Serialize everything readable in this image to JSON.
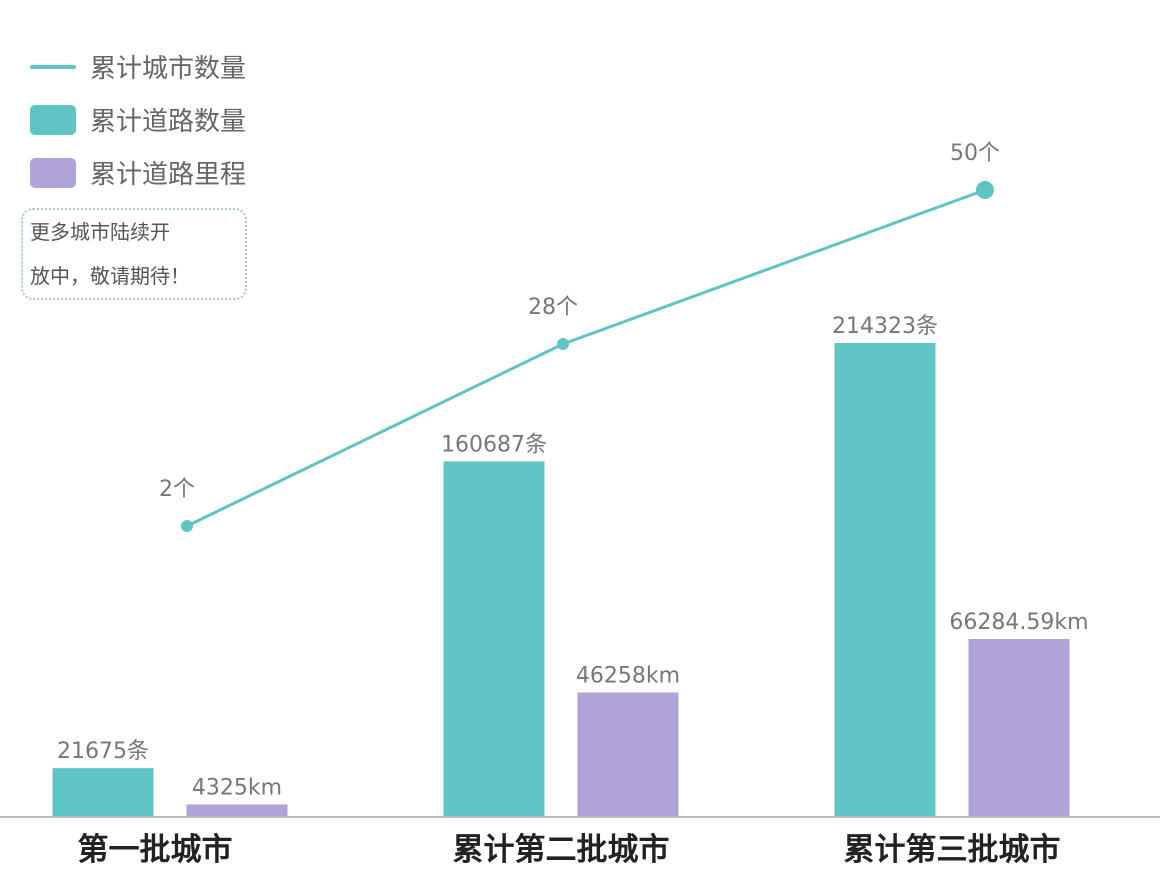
{
  "chart_data": {
    "type": "bar",
    "categories": [
      "第一批城市",
      "累计第二批城市",
      "累计第三批城市"
    ],
    "series": [
      {
        "name": "累计城市数量",
        "kind": "line",
        "color": "#5fc4c4",
        "values": [
          2,
          28,
          50
        ],
        "labels": [
          "2个",
          "28个",
          "50个"
        ]
      },
      {
        "name": "累计道路数量",
        "kind": "bar",
        "color": "#5fc4c4",
        "values": [
          21675,
          160687,
          214323
        ],
        "labels": [
          "21675条",
          "160687条",
          "214323条"
        ]
      },
      {
        "name": "累计道路里程",
        "kind": "bar",
        "color": "#b0a3d8",
        "values": [
          4325,
          46258,
          66284.59
        ],
        "labels": [
          "4325km",
          "46258km",
          "66284.59km"
        ]
      }
    ],
    "legend": "top-left",
    "grid": false,
    "note": [
      "更多城市陆续开",
      "放中，敬请期待！"
    ]
  }
}
